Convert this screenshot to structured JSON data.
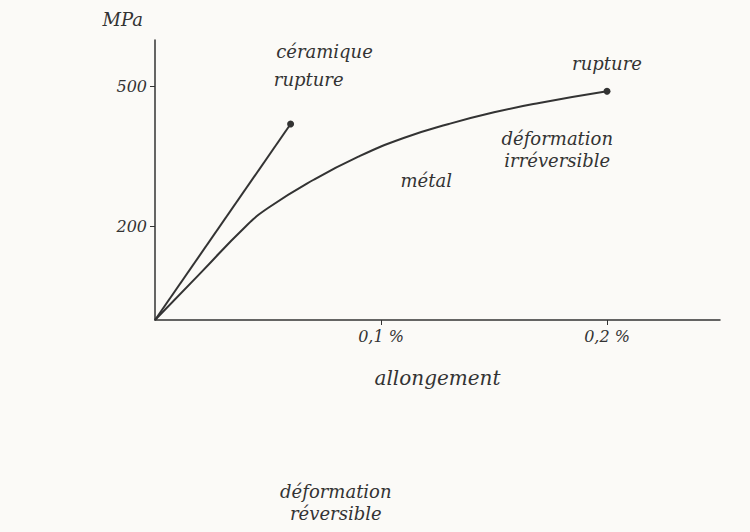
{
  "chart_data": {
    "type": "line",
    "x_label": "allongement",
    "y_label": "MPa",
    "xlim": [
      0,
      0.25
    ],
    "xticks": [
      {
        "value": 0.1,
        "label": "0,1 %"
      },
      {
        "value": 0.2,
        "label": "0,2 %"
      }
    ],
    "ylim": [
      0,
      600
    ],
    "yticks": [
      200,
      500
    ],
    "grid": false,
    "color": "#333333",
    "series": [
      {
        "x": [
          0,
          0.06
        ],
        "values": [
          0,
          420
        ],
        "marker": "circle",
        "line_style": "solid"
      },
      {
        "x": [
          0,
          0.02,
          0.04,
          0.05,
          0.07,
          0.09,
          0.11,
          0.13,
          0.15,
          0.17,
          0.2
        ],
        "values": [
          0,
          100,
          200,
          240,
          300,
          350,
          390,
          420,
          445,
          465,
          490
        ],
        "marker": "circle",
        "line_style": "solid"
      }
    ],
    "annotations": [
      {
        "text": "céramique",
        "x": 0.075,
        "y": 575
      },
      {
        "text": "rupture",
        "x": 0.068,
        "y": 515
      },
      {
        "text": "rupture",
        "x": 0.2,
        "y": 550
      },
      {
        "text": "métal",
        "x": 0.12,
        "y": 300
      },
      {
        "text": "déformation irréversible",
        "x": 0.178,
        "y": 365
      },
      {
        "text": "déformation réversible",
        "x": 0.08,
        "y": -390
      }
    ]
  }
}
